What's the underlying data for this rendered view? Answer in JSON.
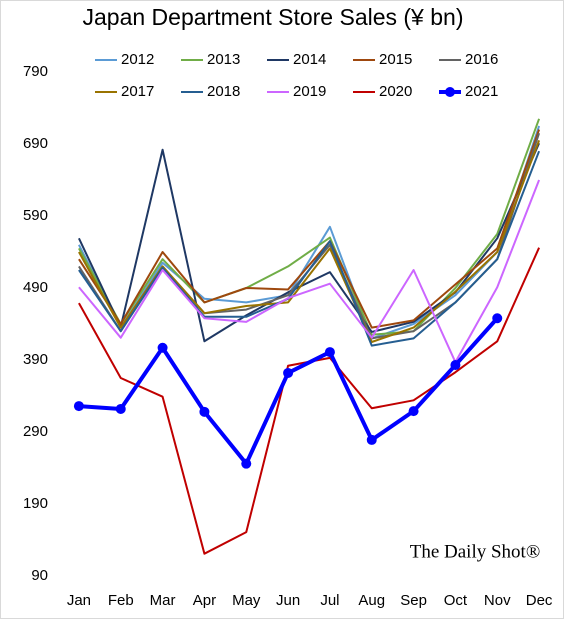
{
  "chart_data": {
    "type": "line",
    "title": "Japan Department Store Sales (¥ bn)",
    "source": "The Daily Shot®",
    "categories": [
      "Jan",
      "Feb",
      "Mar",
      "Apr",
      "May",
      "Jun",
      "Jul",
      "Aug",
      "Sep",
      "Oct",
      "Nov",
      "Dec"
    ],
    "ylim": [
      90,
      790
    ],
    "yticks": [
      90,
      190,
      290,
      390,
      490,
      590,
      690,
      790
    ],
    "grid": false,
    "legend": "top",
    "series": [
      {
        "name": "2012",
        "color": "#5b9bd5",
        "values": [
          550,
          435,
          525,
          475,
          470,
          480,
          575,
          420,
          440,
          480,
          540,
          715
        ]
      },
      {
        "name": "2013",
        "color": "#70ad47",
        "values": [
          545,
          440,
          530,
          470,
          490,
          520,
          560,
          425,
          430,
          490,
          565,
          725
        ]
      },
      {
        "name": "2014",
        "color": "#1f3864",
        "values": [
          559,
          436,
          682,
          416,
          452,
          484,
          512,
          429,
          443,
          484,
          559,
          691
        ]
      },
      {
        "name": "2015",
        "color": "#9e480e",
        "values": [
          530,
          440,
          540,
          470,
          490,
          488,
          555,
          435,
          445,
          495,
          545,
          710
        ]
      },
      {
        "name": "2016",
        "color": "#636363",
        "values": [
          520,
          430,
          520,
          455,
          460,
          480,
          550,
          420,
          430,
          470,
          530,
          705
        ]
      },
      {
        "name": "2017",
        "color": "#997300",
        "values": [
          540,
          435,
          520,
          455,
          465,
          470,
          545,
          415,
          435,
          485,
          540,
          695
        ]
      },
      {
        "name": "2018",
        "color": "#255e91",
        "values": [
          515,
          430,
          518,
          450,
          450,
          475,
          555,
          410,
          420,
          470,
          530,
          680
        ]
      },
      {
        "name": "2019",
        "color": "#cc66ff",
        "values": [
          491,
          421,
          515,
          448,
          443,
          476,
          496,
          421,
          515,
          387,
          491,
          640
        ]
      },
      {
        "name": "2020",
        "color": "#c00000",
        "values": [
          469,
          365,
          339,
          121,
          151,
          382,
          393,
          323,
          334,
          373,
          416,
          546
        ]
      },
      {
        "name": "2021",
        "color": "#0000ff",
        "marker": "circle",
        "values": [
          326,
          322,
          407,
          318,
          246,
          372,
          401,
          279,
          319,
          383,
          448,
          null
        ]
      }
    ]
  }
}
